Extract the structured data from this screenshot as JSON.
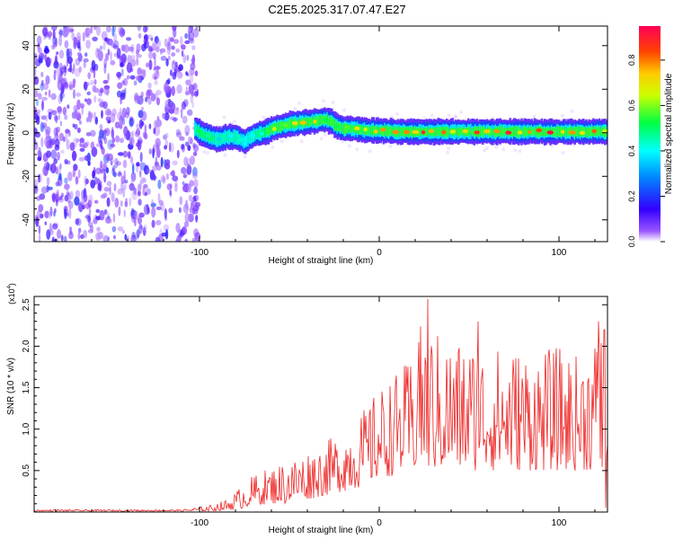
{
  "title": "C2E5.2025.317.07.47.E27",
  "chart_data": [
    {
      "type": "heatmap",
      "name": "spectrogram",
      "xlabel": "Height of straight line (km)",
      "ylabel": "Frequency (Hz)",
      "xlim": [
        -192,
        127
      ],
      "ylim": [
        -50,
        49
      ],
      "xticks": [
        -100,
        0,
        100
      ],
      "yticks": [
        -40,
        -20,
        0,
        20,
        40
      ],
      "colorbar": {
        "label": "Normalized spectral amplitude",
        "range": [
          0,
          0.95
        ],
        "ticks": [
          0.0,
          0.2,
          0.4,
          0.6,
          0.8
        ],
        "tick_labels": [
          "0.0",
          "0.2",
          "0.4",
          "0.6",
          "0.8"
        ]
      },
      "noise_region_x": [
        -192,
        -103
      ],
      "ridge": {
        "x": [
          -103,
          -100,
          -95,
          -90,
          -85,
          -80,
          -78,
          -75,
          -70,
          -65,
          -62,
          -60,
          -55,
          -50,
          -45,
          -40,
          -35,
          -30,
          -27,
          -24,
          -20,
          -15,
          -10,
          -5,
          0,
          10,
          20,
          30,
          40,
          50,
          60,
          70,
          80,
          90,
          100,
          110,
          120,
          127
        ],
        "freq": [
          2,
          0,
          -2,
          -3,
          -2,
          -2,
          -3,
          -4,
          -1,
          0,
          1,
          2,
          3,
          4,
          4.5,
          5,
          5.5,
          6,
          5,
          3,
          2,
          2,
          1.5,
          1,
          1,
          0.5,
          0.5,
          0.5,
          0.5,
          0.5,
          0.5,
          0.5,
          0.5,
          0.5,
          0.5,
          0.5,
          0.5,
          0.5
        ],
        "amplitude": [
          0.45,
          0.5,
          0.5,
          0.45,
          0.45,
          0.45,
          0.45,
          0.4,
          0.45,
          0.5,
          0.55,
          0.6,
          0.65,
          0.65,
          0.7,
          0.75,
          0.75,
          0.7,
          0.65,
          0.6,
          0.6,
          0.8,
          0.9,
          0.8,
          0.75,
          0.85,
          0.9,
          0.9,
          0.88,
          0.9,
          0.9,
          0.92,
          0.9,
          0.92,
          0.9,
          0.88,
          0.85,
          0.8
        ]
      }
    },
    {
      "type": "line",
      "name": "snr",
      "xlabel": "Height of straight line (km)",
      "ylabel": "SNR (10 * v/v)",
      "y_scale_label": "(x10",
      "y_scale_exponent": "4",
      "y_scale_close": ")",
      "xlim": [
        -192,
        127
      ],
      "ylim": [
        0,
        2.6
      ],
      "xticks": [
        -100,
        0,
        100
      ],
      "yticks": [
        0.5,
        1.0,
        1.5,
        2.0,
        2.5
      ],
      "ytick_labels": [
        "0.5",
        "1.0",
        "1.5",
        "2.0",
        "2.5"
      ],
      "color": "#ee2222",
      "envelope": {
        "x": [
          -192,
          -110,
          -95,
          -85,
          -80,
          -75,
          -70,
          -60,
          -50,
          -40,
          -30,
          -20,
          -10,
          0,
          10,
          20,
          25,
          30,
          40,
          50,
          60,
          70,
          80,
          90,
          100,
          110,
          120,
          127
        ],
        "lo": [
          0.01,
          0.01,
          0.01,
          0.02,
          0.03,
          0.05,
          0.08,
          0.1,
          0.1,
          0.15,
          0.2,
          0.25,
          0.3,
          0.4,
          0.45,
          0.5,
          0.5,
          0.5,
          0.5,
          0.5,
          0.5,
          0.5,
          0.5,
          0.5,
          0.5,
          0.5,
          0.5,
          0.5
        ],
        "hi": [
          0.03,
          0.03,
          0.08,
          0.15,
          0.25,
          0.35,
          0.45,
          0.55,
          0.65,
          0.75,
          0.85,
          1.0,
          1.2,
          1.5,
          1.7,
          1.9,
          2.5,
          2.2,
          2.1,
          2.1,
          2.0,
          2.0,
          2.0,
          1.95,
          2.0,
          1.9,
          2.2,
          2.2
        ]
      },
      "peaks": [
        [
          27,
          2.57
        ],
        [
          22,
          2.05
        ],
        [
          55,
          2.3
        ],
        [
          122,
          2.3
        ],
        [
          125,
          2.2
        ]
      ]
    }
  ]
}
